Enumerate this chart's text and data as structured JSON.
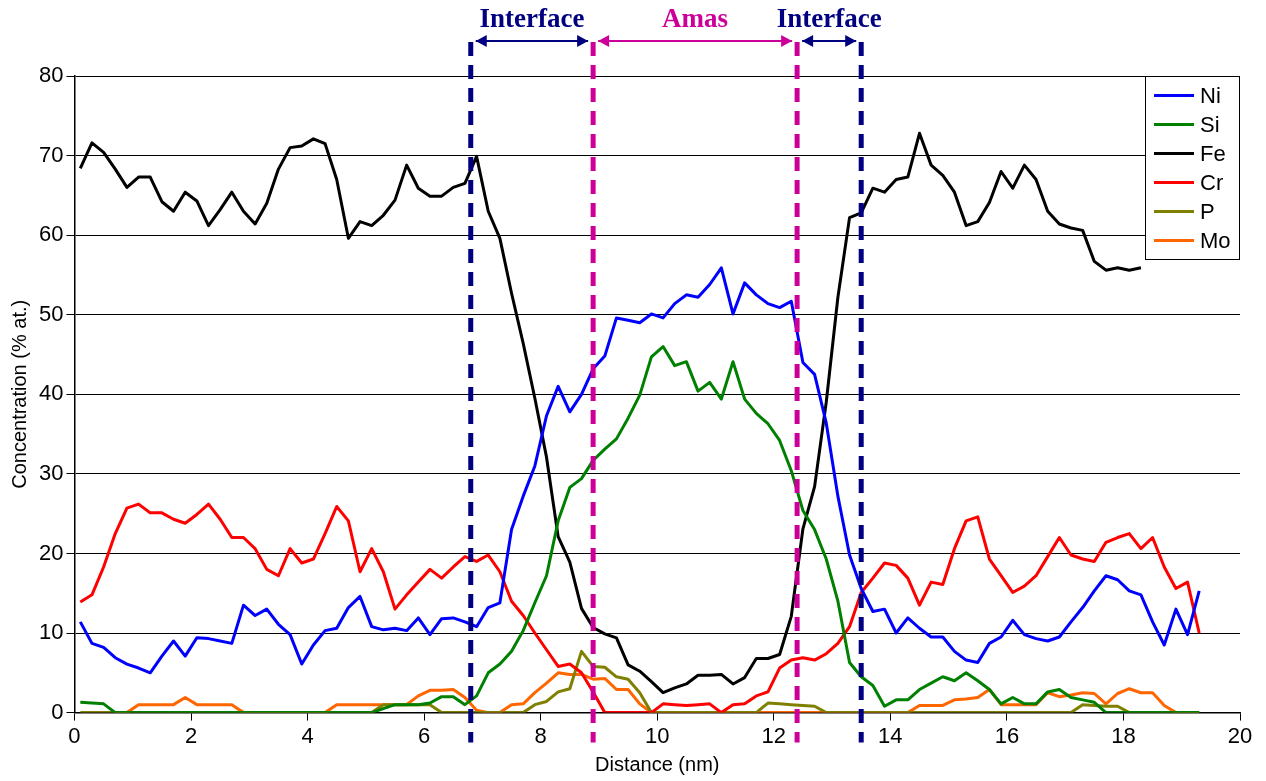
{
  "chart_data": {
    "type": "line",
    "xlabel": "Distance (nm)",
    "ylabel": "Concentration (% at.)",
    "xlim": [
      0,
      20
    ],
    "xticks": [
      0,
      2,
      4,
      6,
      8,
      10,
      12,
      14,
      16,
      18,
      20
    ],
    "ylim": [
      0,
      80
    ],
    "yticks": [
      0,
      10,
      20,
      30,
      40,
      50,
      60,
      70,
      80
    ],
    "grid": "y",
    "legend": "top right",
    "marker": "none",
    "line_style": "solid",
    "x": [
      0.1,
      0.3,
      0.5,
      0.7,
      0.9,
      1.1,
      1.3,
      1.5,
      1.7,
      1.9,
      2.1,
      2.3,
      2.5,
      2.7,
      2.9,
      3.1,
      3.3,
      3.5,
      3.7,
      3.9,
      4.1,
      4.3,
      4.5,
      4.7,
      4.9,
      5.1,
      5.3,
      5.5,
      5.7,
      5.9,
      6.1,
      6.3,
      6.5,
      6.7,
      6.9,
      7.1,
      7.3,
      7.5,
      7.7,
      7.9,
      8.1,
      8.3,
      8.5,
      8.7,
      8.9,
      9.1,
      9.3,
      9.5,
      9.7,
      9.9,
      10.1,
      10.3,
      10.5,
      10.7,
      10.9,
      11.1,
      11.3,
      11.5,
      11.7,
      11.9,
      12.1,
      12.3,
      12.5,
      12.7,
      12.9,
      13.1,
      13.3,
      13.5,
      13.7,
      13.9,
      14.1,
      14.3,
      14.5,
      14.7,
      14.9,
      15.1,
      15.3,
      15.5,
      15.7,
      15.9,
      16.1,
      16.3,
      16.5,
      16.7,
      16.9,
      17.1,
      17.3,
      17.5,
      17.7,
      17.9,
      18.1,
      18.3,
      18.5,
      18.7,
      18.9,
      19.1,
      19.3
    ],
    "series": [
      {
        "name": "Ni",
        "color": "#0000ff",
        "values": [
          11.4,
          8.7,
          8.2,
          6.9,
          6.1,
          5.6,
          5.0,
          7.1,
          9,
          7.1,
          9.4,
          9.3,
          9,
          8.7,
          13.5,
          12.2,
          13,
          11.1,
          9.8,
          6.1,
          8.5,
          10.3,
          10.6,
          13.2,
          14.6,
          10.8,
          10.4,
          10.6,
          10.3,
          11.9,
          9.8,
          11.8,
          11.9,
          11.4,
          10.8,
          13.2,
          13.8,
          23,
          27.2,
          31,
          37.3,
          41,
          37.8,
          40,
          43.2,
          44.8,
          49.6,
          49.3,
          49,
          50.1,
          49.6,
          51.4,
          52.5,
          52.2,
          53.8,
          55.9,
          50.1,
          54,
          52.5,
          51.4,
          50.9,
          51.7,
          44,
          42.5,
          36.4,
          27.2,
          19.8,
          15.6,
          12.7,
          13,
          10,
          11.9,
          10.6,
          9.5,
          9.5,
          7.7,
          6.6,
          6.3,
          8.7,
          9.5,
          11.6,
          9.8,
          9.3,
          9,
          9.5,
          11.4,
          13.2,
          15.3,
          17.2,
          16.7,
          15.3,
          14.8,
          11.4,
          8.5,
          13,
          9.8,
          15.3
        ]
      },
      {
        "name": "Si",
        "color": "#008000",
        "values": [
          1.3,
          1.2,
          1.1,
          0,
          0,
          0,
          0,
          0,
          0,
          0,
          0,
          0,
          0,
          0,
          0,
          0,
          0,
          0,
          0,
          0,
          0,
          0,
          0,
          0,
          0,
          0,
          0.5,
          1,
          1,
          1,
          1.2,
          2,
          2,
          1,
          2.1,
          5,
          6.1,
          7.7,
          10.3,
          13.8,
          17.2,
          24.1,
          28.3,
          29.4,
          31.7,
          33.1,
          34.4,
          37,
          39.9,
          44.7,
          46,
          43.6,
          44.1,
          40.4,
          41.5,
          39.4,
          44.1,
          39.4,
          37.6,
          36.3,
          34.2,
          30.4,
          25.4,
          23,
          19.3,
          14,
          6.3,
          4.5,
          3.4,
          0.8,
          1.6,
          1.6,
          2.9,
          3.7,
          4.5,
          4,
          5,
          4,
          2.9,
          1.1,
          1.9,
          1.1,
          1.1,
          2.6,
          2.9,
          1.9,
          1.6,
          1.3,
          0,
          0,
          0,
          0,
          0,
          0,
          0,
          0,
          0
        ]
      },
      {
        "name": "Fe",
        "color": "#000000",
        "values": [
          68.4,
          71.6,
          70.4,
          68.3,
          66,
          67.3,
          67.3,
          64.2,
          63,
          65.4,
          64.3,
          61.2,
          63.2,
          65.4,
          63,
          61.4,
          64,
          68.3,
          71,
          71.2,
          72.1,
          71.5,
          67,
          59.6,
          61.7,
          61.2,
          62.5,
          64.4,
          68.8,
          65.9,
          64.9,
          64.9,
          66,
          66.5,
          69.9,
          63,
          59.6,
          52.7,
          46.4,
          39.5,
          32.1,
          22.1,
          18.9,
          13.1,
          10.7,
          9.9,
          9.4,
          6,
          5.2,
          3.9,
          2.5,
          3.1,
          3.6,
          4.7,
          4.7,
          4.8,
          3.6,
          4.4,
          6.8,
          6.8,
          7.3,
          12.1,
          23.1,
          28.4,
          39,
          52.2,
          62.2,
          62.8,
          65.9,
          65.4,
          67,
          67.3,
          72.8,
          68.8,
          67.5,
          65.4,
          61.2,
          61.7,
          64.1,
          68,
          65.9,
          68.8,
          67,
          63,
          61.4,
          60.9,
          60.6,
          56.7,
          55.6,
          55.9,
          55.6,
          55.9,
          null,
          null,
          null,
          null,
          null
        ]
      },
      {
        "name": "Cr",
        "color": "#ff0000",
        "values": [
          13.9,
          14.8,
          18.3,
          22.5,
          25.7,
          26.2,
          25.1,
          25.1,
          24.3,
          23.8,
          24.9,
          26.2,
          24.3,
          22,
          22,
          20.6,
          18,
          17.2,
          20.6,
          18.8,
          19.3,
          22.5,
          25.9,
          24.1,
          17.7,
          20.6,
          17.7,
          13,
          14.8,
          16.4,
          18,
          16.9,
          18.3,
          19.6,
          19,
          19.8,
          17.7,
          14,
          12.2,
          10,
          7.9,
          5.8,
          6.1,
          5,
          2.6,
          0,
          0,
          0,
          0,
          0,
          1.1,
          1,
          0.9,
          1,
          1.1,
          0,
          1,
          1.1,
          2.1,
          2.6,
          5.6,
          6.6,
          6.9,
          6.6,
          7.4,
          8.7,
          10.8,
          15.1,
          16.9,
          18.8,
          18.5,
          16.9,
          13.5,
          16.4,
          16.1,
          20.6,
          24.1,
          24.6,
          19.3,
          17.2,
          15.1,
          15.9,
          17.2,
          19.6,
          22,
          19.8,
          19.3,
          19,
          21.4,
          22,
          22.5,
          20.6,
          22,
          18.3,
          15.6,
          16.4,
          10
        ]
      },
      {
        "name": "P",
        "color": "#808000",
        "values": [
          0,
          0,
          0,
          0,
          0,
          0,
          0,
          0,
          0,
          0,
          0,
          0,
          0,
          0,
          0,
          0,
          0,
          0,
          0,
          0,
          0,
          0,
          0,
          0,
          0,
          0,
          1,
          1,
          1,
          1,
          1,
          0,
          0,
          0,
          0,
          0,
          0,
          0,
          0,
          1,
          1.4,
          2.6,
          3,
          7.7,
          5.8,
          5.7,
          4.5,
          4.2,
          2.5,
          0,
          0,
          0,
          0,
          0,
          0,
          0,
          0,
          0,
          0,
          1.2,
          1.1,
          1,
          0.9,
          0.8,
          0,
          0,
          0,
          0,
          0,
          0,
          0,
          0,
          0,
          0,
          0,
          0,
          0,
          0,
          0,
          0,
          0,
          0,
          0,
          0,
          0,
          0,
          1,
          0.9,
          0.8,
          0.8,
          0,
          0,
          0,
          0,
          0,
          0,
          0
        ]
      },
      {
        "name": "Mo",
        "color": "#ff6600",
        "values": [
          null,
          null,
          null,
          0,
          0,
          1,
          1,
          1,
          1,
          1.9,
          1,
          1,
          1,
          1,
          0,
          0,
          0,
          0,
          0,
          0,
          0,
          0,
          1,
          1,
          1,
          1,
          1,
          1,
          1,
          2.1,
          2.8,
          2.8,
          2.9,
          1.9,
          0.3,
          0,
          0,
          1,
          1.1,
          2.5,
          3.7,
          5,
          4.8,
          4.8,
          4.2,
          4.3,
          2.9,
          2.9,
          1.1,
          0,
          0,
          0,
          0,
          0,
          0,
          0,
          0,
          0,
          0,
          0,
          0,
          0,
          0,
          0,
          0,
          0,
          0,
          0,
          0,
          0,
          0,
          0,
          0.9,
          0.9,
          0.9,
          1.6,
          1.7,
          1.9,
          2.9,
          1,
          1,
          1,
          1,
          2.5,
          2,
          2.2,
          2.5,
          2.4,
          1.1,
          2.4,
          3,
          2.5,
          2.5,
          0.9,
          0,
          0,
          0
        ]
      }
    ],
    "ref_lines": [
      {
        "axis": "x",
        "value": 6.8,
        "color": "#000080",
        "line_style": "dashed"
      },
      {
        "axis": "x",
        "value": 8.9,
        "color": "#cc0099",
        "line_style": "dashed"
      },
      {
        "axis": "x",
        "value": 12.4,
        "color": "#cc0099",
        "line_style": "dashed"
      },
      {
        "axis": "x",
        "value": 13.5,
        "color": "#000080",
        "line_style": "dashed"
      }
    ],
    "annotations": [
      "Interface",
      "Amas",
      "Interface"
    ]
  }
}
